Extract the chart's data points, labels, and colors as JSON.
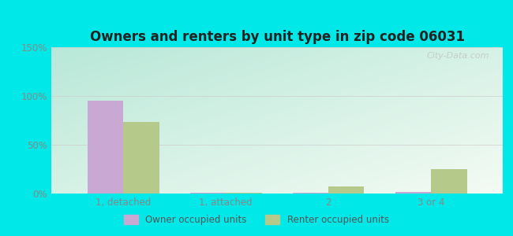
{
  "title": "Owners and renters by unit type in zip code 06031",
  "categories": [
    "1, detached",
    "1, attached",
    "2",
    "3 or 4"
  ],
  "owner_values": [
    95,
    1,
    1,
    2
  ],
  "renter_values": [
    73,
    1,
    7,
    25
  ],
  "owner_color": "#c9a8d4",
  "renter_color": "#b5c98a",
  "ylim": [
    0,
    150
  ],
  "yticks": [
    0,
    50,
    100,
    150
  ],
  "ytick_labels": [
    "0%",
    "50%",
    "100%",
    "150%"
  ],
  "bg_topleft": "#b8e8d8",
  "bg_bottomright": "#f4fbf4",
  "outer_bg": "#00e8e8",
  "bar_width": 0.35,
  "watermark": "City-Data.com",
  "legend_owner": "Owner occupied units",
  "legend_renter": "Renter occupied units"
}
